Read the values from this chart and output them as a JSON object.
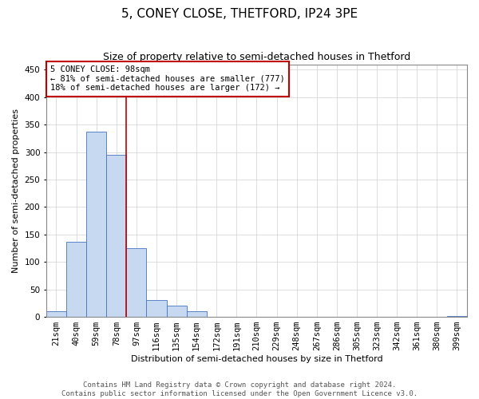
{
  "title": "5, CONEY CLOSE, THETFORD, IP24 3PE",
  "subtitle": "Size of property relative to semi-detached houses in Thetford",
  "xlabel": "Distribution of semi-detached houses by size in Thetford",
  "ylabel": "Number of semi-detached properties",
  "categories": [
    "21sqm",
    "40sqm",
    "59sqm",
    "78sqm",
    "97sqm",
    "116sqm",
    "135sqm",
    "154sqm",
    "172sqm",
    "191sqm",
    "210sqm",
    "229sqm",
    "248sqm",
    "267sqm",
    "286sqm",
    "305sqm",
    "323sqm",
    "342sqm",
    "361sqm",
    "380sqm",
    "399sqm"
  ],
  "values": [
    10,
    137,
    337,
    295,
    125,
    30,
    20,
    10,
    0,
    0,
    0,
    0,
    0,
    0,
    0,
    0,
    0,
    0,
    0,
    0,
    1
  ],
  "bar_color": "#c6d9f0",
  "bar_edge_color": "#4472c4",
  "vline_color": "#c00000",
  "vline_pos": 3.5,
  "ylim": [
    0,
    460
  ],
  "yticks": [
    0,
    50,
    100,
    150,
    200,
    250,
    300,
    350,
    400,
    450
  ],
  "annotation_title": "5 CONEY CLOSE: 98sqm",
  "annotation_line1": "← 81% of semi-detached houses are smaller (777)",
  "annotation_line2": "18% of semi-detached houses are larger (172) →",
  "annotation_box_color": "#ffffff",
  "annotation_box_edge": "#c00000",
  "footer1": "Contains HM Land Registry data © Crown copyright and database right 2024.",
  "footer2": "Contains public sector information licensed under the Open Government Licence v3.0.",
  "title_fontsize": 11,
  "subtitle_fontsize": 9,
  "axis_label_fontsize": 8,
  "tick_fontsize": 7.5,
  "annotation_fontsize": 7.5,
  "footer_fontsize": 6.5
}
